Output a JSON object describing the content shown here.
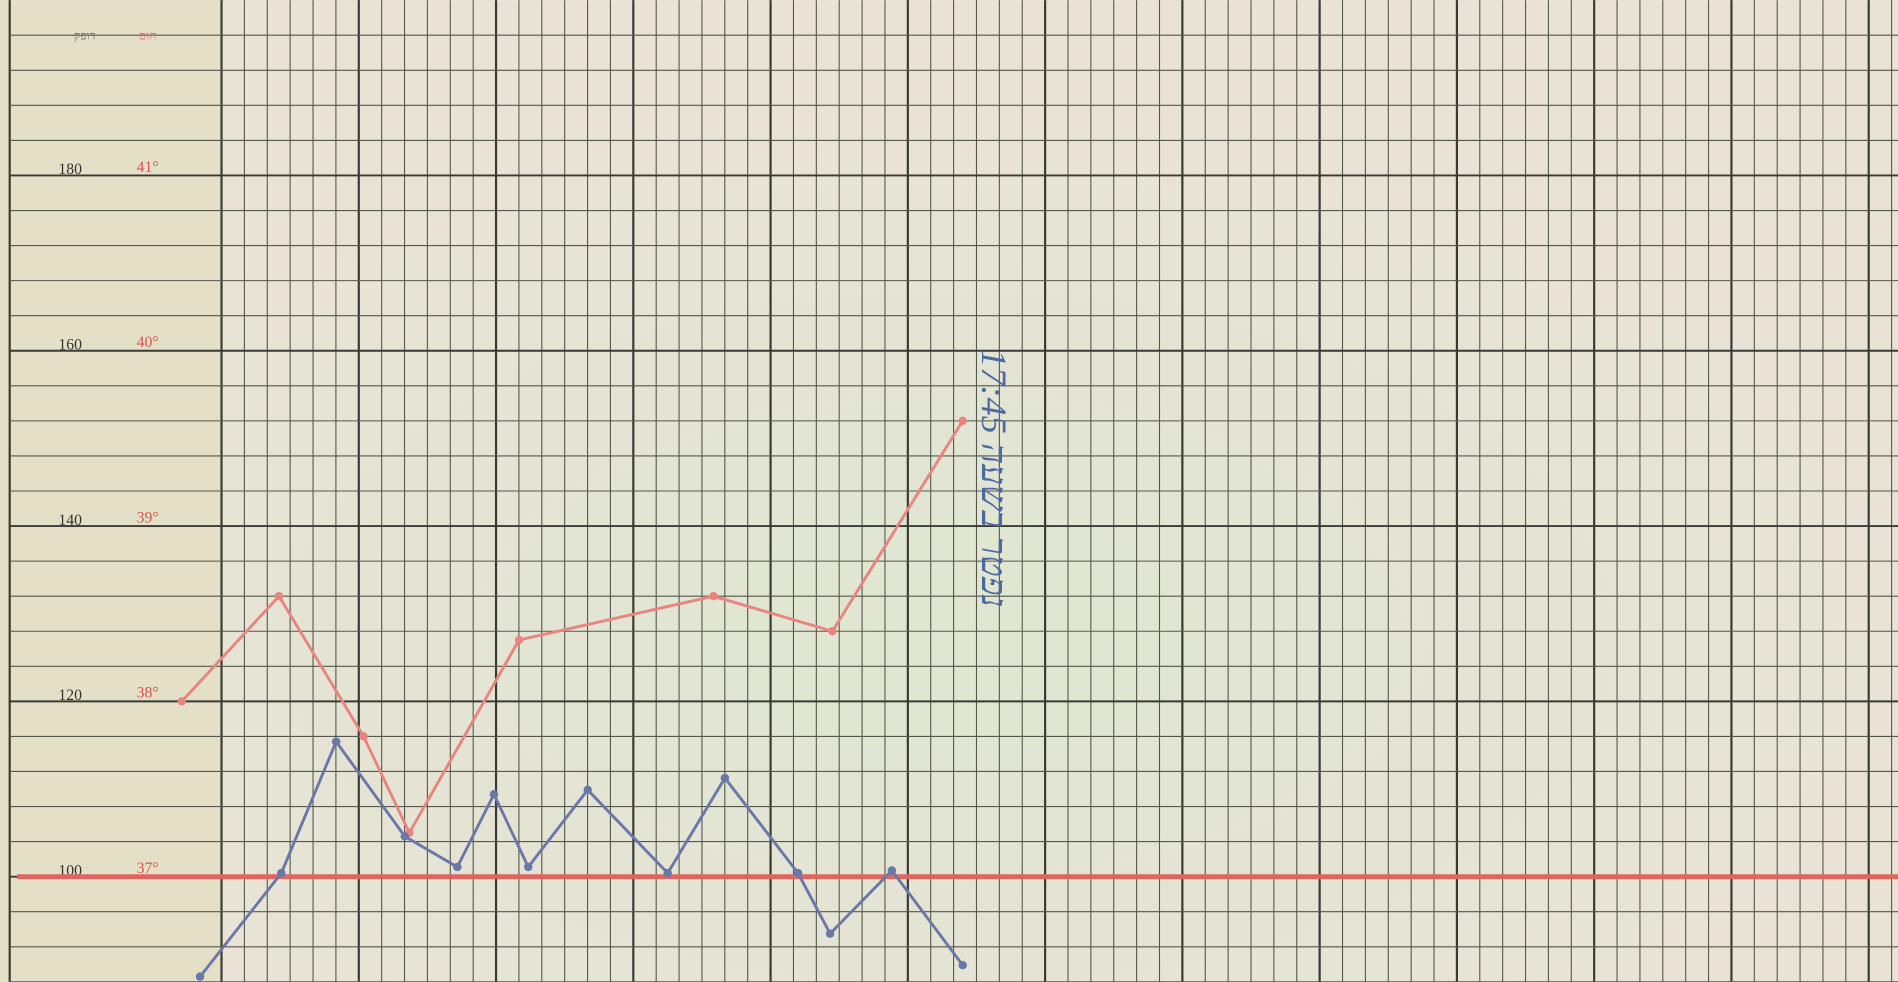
{
  "chart_data": {
    "type": "line",
    "header": {
      "pulse": "דופק",
      "temperature": "חום"
    },
    "annotation": "נפטר בשעה 17:45",
    "xlim": [
      -9.7,
      73.3
    ],
    "ylim": [
      88,
      200
    ],
    "yticks": [
      180,
      160,
      140,
      120,
      100
    ],
    "y2lim": [
      36.4,
      42
    ],
    "y2ticks": [
      {
        "value": 41,
        "label": "41°"
      },
      {
        "value": 40,
        "label": "40°"
      },
      {
        "value": 39,
        "label": "39°"
      },
      {
        "value": 38,
        "label": "38°"
      },
      {
        "value": 37,
        "label": "37°"
      }
    ],
    "reference_line": {
      "value": 37,
      "axis": "y2",
      "color": "#e0655f"
    },
    "grid": true,
    "series": [
      {
        "name": "חום",
        "axis": "y2",
        "color": "#e8857f",
        "x": [
          -1.75,
          2.5,
          6.2,
          8.2,
          13,
          21.5,
          26.7,
          32.4
        ],
        "values": [
          38.0,
          38.6,
          37.8,
          37.25,
          38.35,
          38.6,
          38.4,
          39.6
        ]
      },
      {
        "name": "דופק",
        "color": "#6a78a8",
        "x": [
          -0.95,
          2.6,
          5.0,
          8.0,
          10.3,
          11.9,
          13.4,
          16.0,
          19.5,
          22.0,
          25.2,
          26.6,
          29.3,
          32.4
        ],
        "values": [
          88.6,
          100.4,
          115.4,
          104.6,
          101.1,
          109.4,
          101.1,
          109.9,
          100.4,
          111.25,
          100.4,
          93.5,
          100.7,
          89.9
        ]
      }
    ]
  }
}
